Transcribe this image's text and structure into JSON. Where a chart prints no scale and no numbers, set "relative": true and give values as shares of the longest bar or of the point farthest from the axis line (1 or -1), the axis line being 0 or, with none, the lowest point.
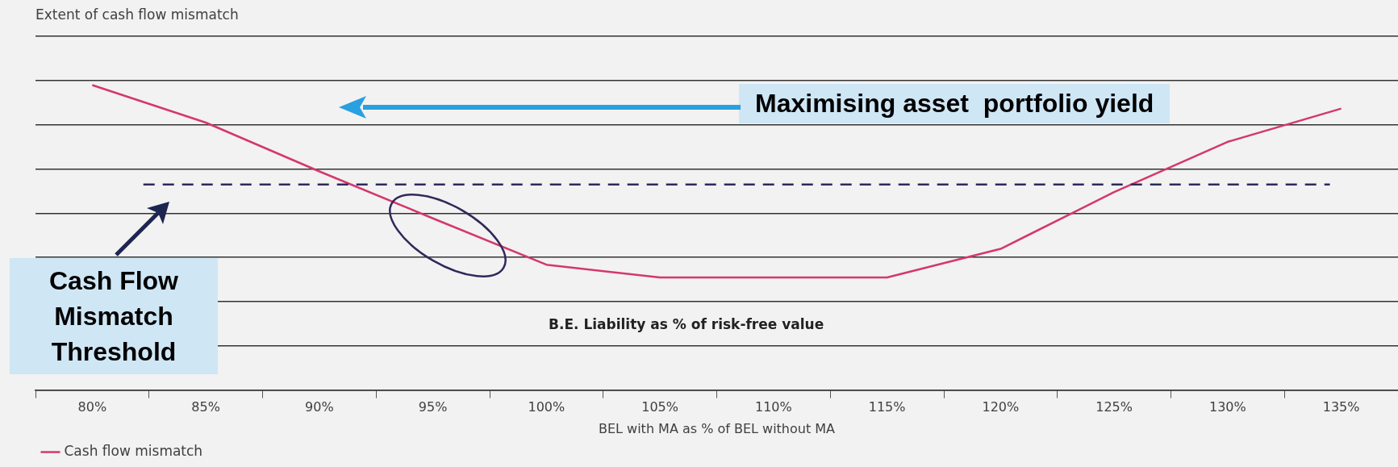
{
  "chart_data": {
    "type": "line",
    "ylabel": "Extent of cash flow mismatch",
    "xlabel": "BEL with MA as % of BEL without MA",
    "relative": true,
    "categories": [
      "80%",
      "85%",
      "90%",
      "95%",
      "100%",
      "105%",
      "110%",
      "115%",
      "120%",
      "125%",
      "130%",
      "135%"
    ],
    "series": [
      {
        "name": "Cash flow mismatch",
        "color": "#d4386b",
        "values": [
          1,
          0.877,
          0.717,
          0.563,
          0.411,
          0.369,
          0.369,
          0.369,
          0.463,
          0.649,
          0.814,
          0.923
        ]
      }
    ],
    "ref_lines": [
      {
        "axis": "y",
        "value": 0.674,
        "color": "#2e2a5a",
        "line_style": "dashed"
      }
    ],
    "annotations": [
      "Maximising asset  portfolio yield",
      "Cash Flow Mismatch Threshold",
      "B.E. Liability as % of risk-free value"
    ],
    "grid": "y",
    "legend": "bottom left",
    "marker": "none",
    "line_style": "solid"
  }
}
